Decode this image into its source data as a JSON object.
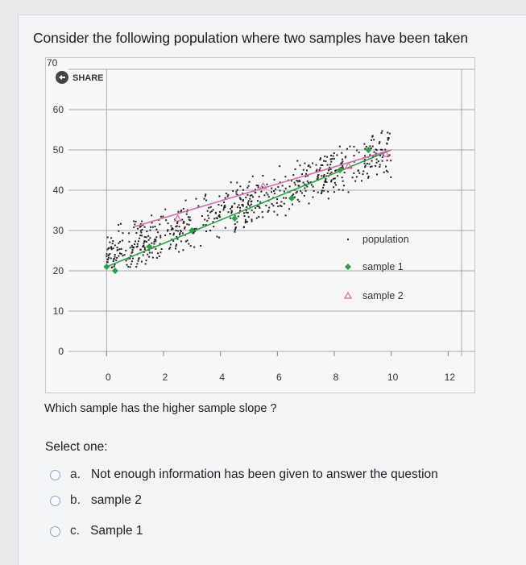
{
  "question": {
    "text": "Consider the following population where two samples have been taken",
    "sub_question": "Which sample has the higher sample slope ?",
    "select_one": "Select one:"
  },
  "share_label": "SHARE",
  "options": [
    {
      "letter": "a.",
      "label": "Not enough information has been given to answer the question"
    },
    {
      "letter": "b.",
      "label": "sample 2"
    },
    {
      "letter": "c.",
      "label": "Sample 1"
    }
  ],
  "colors": {
    "population": "#222222",
    "sample1": "#2e9e4b",
    "sample2": "#d46aa8",
    "radio_border": "#8ea2c4"
  },
  "chart_data": {
    "type": "scatter",
    "title": "",
    "xlabel": "",
    "ylabel": "",
    "xlim": [
      -1,
      12.5
    ],
    "ylim": [
      0,
      70
    ],
    "x_ticks": [
      "0",
      "2",
      "4",
      "6",
      "8",
      "10",
      "12"
    ],
    "y_ticks": [
      "0",
      "10",
      "20",
      "30",
      "40",
      "50",
      "60",
      "70"
    ],
    "grid": true,
    "legend_position": "right",
    "legend": [
      {
        "name": "population",
        "marker": "dot"
      },
      {
        "name": "sample 1",
        "marker": "diamond"
      },
      {
        "name": "sample 2",
        "marker": "triangle"
      }
    ],
    "population_trend": {
      "x_range": [
        0,
        10
      ],
      "y_start": 24,
      "y_end": 50,
      "spread": 7
    },
    "series": [
      {
        "name": "sample 1",
        "line": [
          [
            0,
            21
          ],
          [
            10,
            50
          ]
        ],
        "points": [
          [
            0,
            21
          ],
          [
            0.3,
            20
          ],
          [
            1.5,
            26
          ],
          [
            3,
            30
          ],
          [
            4.5,
            33
          ],
          [
            6.5,
            38
          ],
          [
            8.2,
            45
          ],
          [
            9.2,
            50
          ]
        ]
      },
      {
        "name": "sample 2",
        "line": [
          [
            1,
            31
          ],
          [
            10,
            50
          ]
        ],
        "points": [
          [
            2.5,
            33
          ],
          [
            5.5,
            41
          ],
          [
            8.5,
            46
          ],
          [
            9.8,
            49
          ]
        ]
      }
    ]
  }
}
